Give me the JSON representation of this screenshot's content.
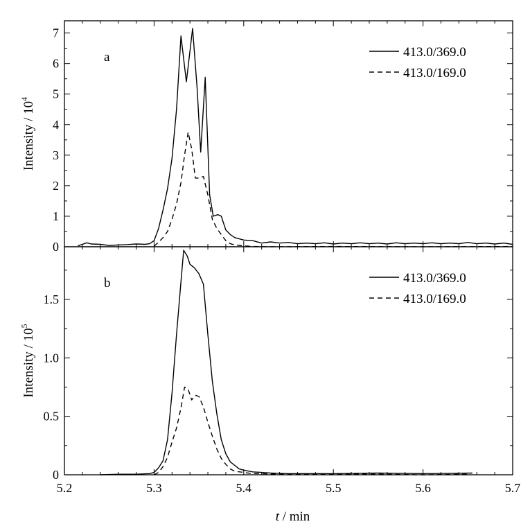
{
  "chart_data": [
    {
      "type": "line",
      "panel_label": "a",
      "ylabel": "Intensity / 10",
      "ylabel_exponent": "4",
      "xlim": [
        5.2,
        5.7
      ],
      "ylim": [
        0,
        7.4
      ],
      "yticks": [
        0,
        1,
        2,
        3,
        4,
        5,
        6,
        7
      ],
      "ytick_labels": [
        "0",
        "1",
        "2",
        "3",
        "4",
        "5",
        "6",
        "7"
      ],
      "legend_position": "top-right",
      "series": [
        {
          "name": "413.0/369.0",
          "style": "solid",
          "points": [
            [
              5.215,
              0.03
            ],
            [
              5.22,
              0.08
            ],
            [
              5.225,
              0.13
            ],
            [
              5.23,
              0.09
            ],
            [
              5.24,
              0.08
            ],
            [
              5.25,
              0.04
            ],
            [
              5.26,
              0.06
            ],
            [
              5.27,
              0.07
            ],
            [
              5.28,
              0.09
            ],
            [
              5.29,
              0.08
            ],
            [
              5.295,
              0.1
            ],
            [
              5.3,
              0.2
            ],
            [
              5.305,
              0.6
            ],
            [
              5.31,
              1.2
            ],
            [
              5.315,
              1.9
            ],
            [
              5.32,
              2.9
            ],
            [
              5.325,
              4.5
            ],
            [
              5.33,
              6.9
            ],
            [
              5.336,
              5.4
            ],
            [
              5.343,
              7.15
            ],
            [
              5.348,
              5.2
            ],
            [
              5.352,
              3.1
            ],
            [
              5.357,
              5.55
            ],
            [
              5.362,
              1.7
            ],
            [
              5.366,
              1.0
            ],
            [
              5.371,
              1.05
            ],
            [
              5.375,
              1.0
            ],
            [
              5.38,
              0.55
            ],
            [
              5.385,
              0.4
            ],
            [
              5.39,
              0.3
            ],
            [
              5.4,
              0.22
            ],
            [
              5.41,
              0.2
            ],
            [
              5.42,
              0.12
            ],
            [
              5.43,
              0.16
            ],
            [
              5.44,
              0.12
            ],
            [
              5.45,
              0.14
            ],
            [
              5.46,
              0.1
            ],
            [
              5.47,
              0.12
            ],
            [
              5.48,
              0.1
            ],
            [
              5.49,
              0.13
            ],
            [
              5.5,
              0.09
            ],
            [
              5.51,
              0.12
            ],
            [
              5.52,
              0.1
            ],
            [
              5.53,
              0.13
            ],
            [
              5.54,
              0.1
            ],
            [
              5.55,
              0.12
            ],
            [
              5.56,
              0.09
            ],
            [
              5.57,
              0.13
            ],
            [
              5.58,
              0.1
            ],
            [
              5.59,
              0.12
            ],
            [
              5.6,
              0.1
            ],
            [
              5.61,
              0.13
            ],
            [
              5.62,
              0.1
            ],
            [
              5.63,
              0.12
            ],
            [
              5.64,
              0.1
            ],
            [
              5.65,
              0.14
            ],
            [
              5.66,
              0.1
            ],
            [
              5.67,
              0.12
            ],
            [
              5.68,
              0.09
            ],
            [
              5.69,
              0.12
            ],
            [
              5.7,
              0.08
            ]
          ]
        },
        {
          "name": "413.0/169.0",
          "style": "dashed",
          "points": [
            [
              5.3,
              0.02
            ],
            [
              5.305,
              0.15
            ],
            [
              5.31,
              0.3
            ],
            [
              5.315,
              0.5
            ],
            [
              5.32,
              0.9
            ],
            [
              5.325,
              1.4
            ],
            [
              5.33,
              2.1
            ],
            [
              5.334,
              3.0
            ],
            [
              5.338,
              3.75
            ],
            [
              5.342,
              3.2
            ],
            [
              5.346,
              2.25
            ],
            [
              5.35,
              2.25
            ],
            [
              5.355,
              2.3
            ],
            [
              5.36,
              1.7
            ],
            [
              5.365,
              0.9
            ],
            [
              5.37,
              0.6
            ],
            [
              5.375,
              0.4
            ],
            [
              5.38,
              0.2
            ],
            [
              5.385,
              0.1
            ],
            [
              5.39,
              0.06
            ],
            [
              5.4,
              0.03
            ],
            [
              5.41,
              0.01
            ],
            [
              5.43,
              0.0
            ],
            [
              5.5,
              0.01
            ],
            [
              5.6,
              0.0
            ],
            [
              5.7,
              0.01
            ]
          ]
        }
      ]
    },
    {
      "type": "line",
      "panel_label": "b",
      "ylabel": "Intensity / 10",
      "ylabel_exponent": "5",
      "xlabel_italic": "t",
      "xlabel": " / min",
      "xlim": [
        5.2,
        5.7
      ],
      "ylim": [
        0,
        1.95
      ],
      "yticks": [
        0,
        0.5,
        1.0,
        1.5
      ],
      "ytick_labels": [
        "0",
        "0.5",
        "1.0",
        "1.5"
      ],
      "xticks": [
        5.2,
        5.3,
        5.4,
        5.5,
        5.6,
        5.7
      ],
      "xtick_labels": [
        "5.2",
        "5.3",
        "5.4",
        "5.5",
        "5.6",
        "5.7"
      ],
      "legend_position": "top-right",
      "series": [
        {
          "name": "413.0/369.0",
          "style": "solid",
          "points": [
            [
              5.24,
              0.0
            ],
            [
              5.26,
              0.005
            ],
            [
              5.28,
              0.005
            ],
            [
              5.295,
              0.01
            ],
            [
              5.3,
              0.02
            ],
            [
              5.305,
              0.06
            ],
            [
              5.31,
              0.12
            ],
            [
              5.315,
              0.3
            ],
            [
              5.32,
              0.7
            ],
            [
              5.325,
              1.2
            ],
            [
              5.33,
              1.65
            ],
            [
              5.333,
              1.92
            ],
            [
              5.337,
              1.87
            ],
            [
              5.34,
              1.8
            ],
            [
              5.345,
              1.77
            ],
            [
              5.35,
              1.72
            ],
            [
              5.355,
              1.63
            ],
            [
              5.36,
              1.2
            ],
            [
              5.365,
              0.8
            ],
            [
              5.37,
              0.52
            ],
            [
              5.375,
              0.3
            ],
            [
              5.38,
              0.18
            ],
            [
              5.385,
              0.11
            ],
            [
              5.39,
              0.08
            ],
            [
              5.395,
              0.05
            ],
            [
              5.4,
              0.04
            ],
            [
              5.41,
              0.025
            ],
            [
              5.42,
              0.02
            ],
            [
              5.43,
              0.015
            ],
            [
              5.45,
              0.01
            ],
            [
              5.5,
              0.01
            ],
            [
              5.55,
              0.015
            ],
            [
              5.6,
              0.01
            ],
            [
              5.655,
              0.015
            ]
          ]
        },
        {
          "name": "413.0/169.0",
          "style": "dashed",
          "points": [
            [
              5.3,
              0.0
            ],
            [
              5.305,
              0.02
            ],
            [
              5.31,
              0.07
            ],
            [
              5.315,
              0.15
            ],
            [
              5.32,
              0.28
            ],
            [
              5.325,
              0.4
            ],
            [
              5.33,
              0.57
            ],
            [
              5.334,
              0.75
            ],
            [
              5.338,
              0.73
            ],
            [
              5.342,
              0.64
            ],
            [
              5.346,
              0.68
            ],
            [
              5.35,
              0.67
            ],
            [
              5.355,
              0.58
            ],
            [
              5.36,
              0.45
            ],
            [
              5.365,
              0.33
            ],
            [
              5.37,
              0.22
            ],
            [
              5.375,
              0.14
            ],
            [
              5.38,
              0.09
            ],
            [
              5.385,
              0.05
            ],
            [
              5.39,
              0.03
            ],
            [
              5.4,
              0.02
            ],
            [
              5.41,
              0.01
            ],
            [
              5.45,
              0.005
            ],
            [
              5.5,
              0.005
            ],
            [
              5.55,
              0.005
            ],
            [
              5.6,
              0.0
            ],
            [
              5.65,
              0.005
            ]
          ]
        }
      ]
    }
  ]
}
